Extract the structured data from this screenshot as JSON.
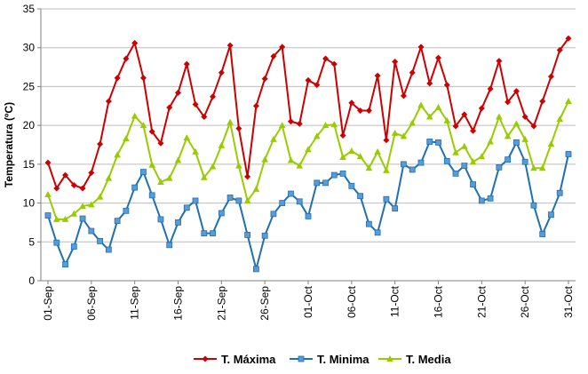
{
  "chart_data": {
    "type": "line",
    "xlabel": "",
    "ylabel": "Temperatura (ºC)",
    "ylim": [
      0,
      35
    ],
    "yticks": [
      0,
      5,
      10,
      15,
      20,
      25,
      30,
      35
    ],
    "grid": true,
    "legend_position": "bottom",
    "x": [
      "01-Sep",
      "02-Sep",
      "03-Sep",
      "04-Sep",
      "05-Sep",
      "06-Sep",
      "07-Sep",
      "08-Sep",
      "09-Sep",
      "10-Sep",
      "11-Sep",
      "12-Sep",
      "13-Sep",
      "14-Sep",
      "15-Sep",
      "16-Sep",
      "17-Sep",
      "18-Sep",
      "19-Sep",
      "20-Sep",
      "21-Sep",
      "22-Sep",
      "23-Sep",
      "24-Sep",
      "25-Sep",
      "26-Sep",
      "27-Sep",
      "28-Sep",
      "29-Sep",
      "30-Sep",
      "01-Oct",
      "02-Oct",
      "03-Oct",
      "04-Oct",
      "05-Oct",
      "06-Oct",
      "07-Oct",
      "08-Oct",
      "09-Oct",
      "10-Oct",
      "11-Oct",
      "12-Oct",
      "13-Oct",
      "14-Oct",
      "15-Oct",
      "16-Oct",
      "17-Oct",
      "18-Oct",
      "19-Oct",
      "20-Oct",
      "21-Oct",
      "22-Oct",
      "23-Oct",
      "24-Oct",
      "25-Oct",
      "26-Oct",
      "27-Oct",
      "28-Oct",
      "29-Oct",
      "30-Oct",
      "31-Oct"
    ],
    "xtick_labels": [
      "01-Sep",
      "06-Sep",
      "11-Sep",
      "16-Sep",
      "21-Sep",
      "26-Sep",
      "01-Oct",
      "06-Oct",
      "11-Oct",
      "16-Oct",
      "21-Oct",
      "26-Oct",
      "31-Oct"
    ],
    "series": [
      {
        "name": "T. Máxima",
        "color": "#cc0000",
        "marker": "diamond",
        "values": [
          15.2,
          11.9,
          13.6,
          12.3,
          11.9,
          13.9,
          17.6,
          23.1,
          26.1,
          28.6,
          30.6,
          26.1,
          19.2,
          17.7,
          22.3,
          24.2,
          27.9,
          22.7,
          21.1,
          23.7,
          26.8,
          30.3,
          19.6,
          13.4,
          22.5,
          26.0,
          28.9,
          30.1,
          20.5,
          20.2,
          25.8,
          25.2,
          28.6,
          27.9,
          18.7,
          22.9,
          21.9,
          21.9,
          26.4,
          18.1,
          28.2,
          23.8,
          26.8,
          30.1,
          25.4,
          28.7,
          25.2,
          19.9,
          21.4,
          19.3,
          22.2,
          24.7,
          28.3,
          23.0,
          24.4,
          21.1,
          19.9,
          23.1,
          26.3,
          29.7,
          31.2
        ]
      },
      {
        "name": "T. Minima",
        "color": "#1f6fb2",
        "marker": "square",
        "values": [
          8.4,
          4.9,
          2.1,
          4.4,
          8.0,
          6.4,
          5.1,
          4.0,
          7.7,
          9.0,
          12.0,
          14.0,
          11.0,
          7.9,
          4.6,
          7.5,
          9.4,
          10.3,
          6.1,
          6.1,
          8.7,
          10.7,
          10.3,
          5.9,
          1.5,
          5.8,
          8.6,
          10.0,
          11.2,
          10.2,
          8.3,
          12.6,
          12.6,
          13.6,
          13.8,
          12.2,
          10.9,
          7.3,
          6.2,
          10.5,
          9.3,
          15.0,
          14.3,
          15.2,
          17.9,
          17.8,
          15.4,
          13.8,
          14.8,
          12.4,
          10.3,
          10.6,
          14.6,
          15.6,
          17.8,
          15.3,
          9.7,
          6.0,
          8.5,
          11.3,
          16.3
        ]
      },
      {
        "name": "T. Media",
        "color": "#99cc00",
        "marker": "triangle",
        "values": [
          11.1,
          7.9,
          7.9,
          8.6,
          9.6,
          9.8,
          10.8,
          13.2,
          16.2,
          18.3,
          21.2,
          20.0,
          14.9,
          12.7,
          13.2,
          15.5,
          18.4,
          16.6,
          13.3,
          14.7,
          17.4,
          20.4,
          14.8,
          10.3,
          11.8,
          15.6,
          18.2,
          20.0,
          15.5,
          14.8,
          16.9,
          18.6,
          20.0,
          20.1,
          15.9,
          16.7,
          16.0,
          14.5,
          16.6,
          14.2,
          19.0,
          18.6,
          20.3,
          22.6,
          21.1,
          22.3,
          20.6,
          16.5,
          17.3,
          15.3,
          16.0,
          17.9,
          21.1,
          18.6,
          20.2,
          18.2,
          14.5,
          14.5,
          17.6,
          20.8,
          23.1
        ]
      }
    ]
  }
}
